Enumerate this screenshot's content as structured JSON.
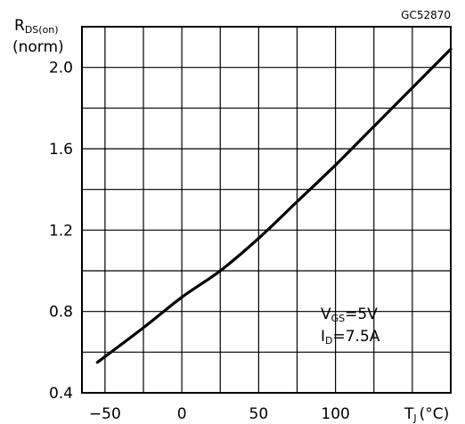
{
  "chart_data": {
    "type": "line",
    "figure_code": "GC52870",
    "ylabel": "R",
    "ylabel_sub": "DS(on)",
    "ylabel_unit": "(norm)",
    "xlabel": "T",
    "xlabel_sub": "J",
    "xlabel_unit": "(°C)",
    "xlim": [
      -65,
      175
    ],
    "ylim": [
      0.4,
      2.2
    ],
    "x_ticks": [
      -50,
      0,
      50,
      100
    ],
    "x_tick_labels": [
      "−50",
      "0",
      "50",
      "100"
    ],
    "y_ticks": [
      0.4,
      0.8,
      1.2,
      1.6,
      2.0
    ],
    "y_tick_labels": [
      "0.4",
      "0.8",
      "1.2",
      "1.6",
      "2.0"
    ],
    "x_grid_step": 25,
    "y_grid_step": 0.2,
    "grid": true,
    "annotation": {
      "line1_main": "V",
      "line1_sub": "GS",
      "line1_value": "=5V",
      "line2_main": "I",
      "line2_sub": "D",
      "line2_value": "=7.5A"
    },
    "series": [
      {
        "x": [
          -55,
          -25,
          0,
          25,
          50,
          75,
          100,
          125,
          150,
          175
        ],
        "y": [
          0.55,
          0.72,
          0.87,
          1.0,
          1.16,
          1.34,
          1.52,
          1.71,
          1.9,
          2.09
        ]
      }
    ]
  }
}
